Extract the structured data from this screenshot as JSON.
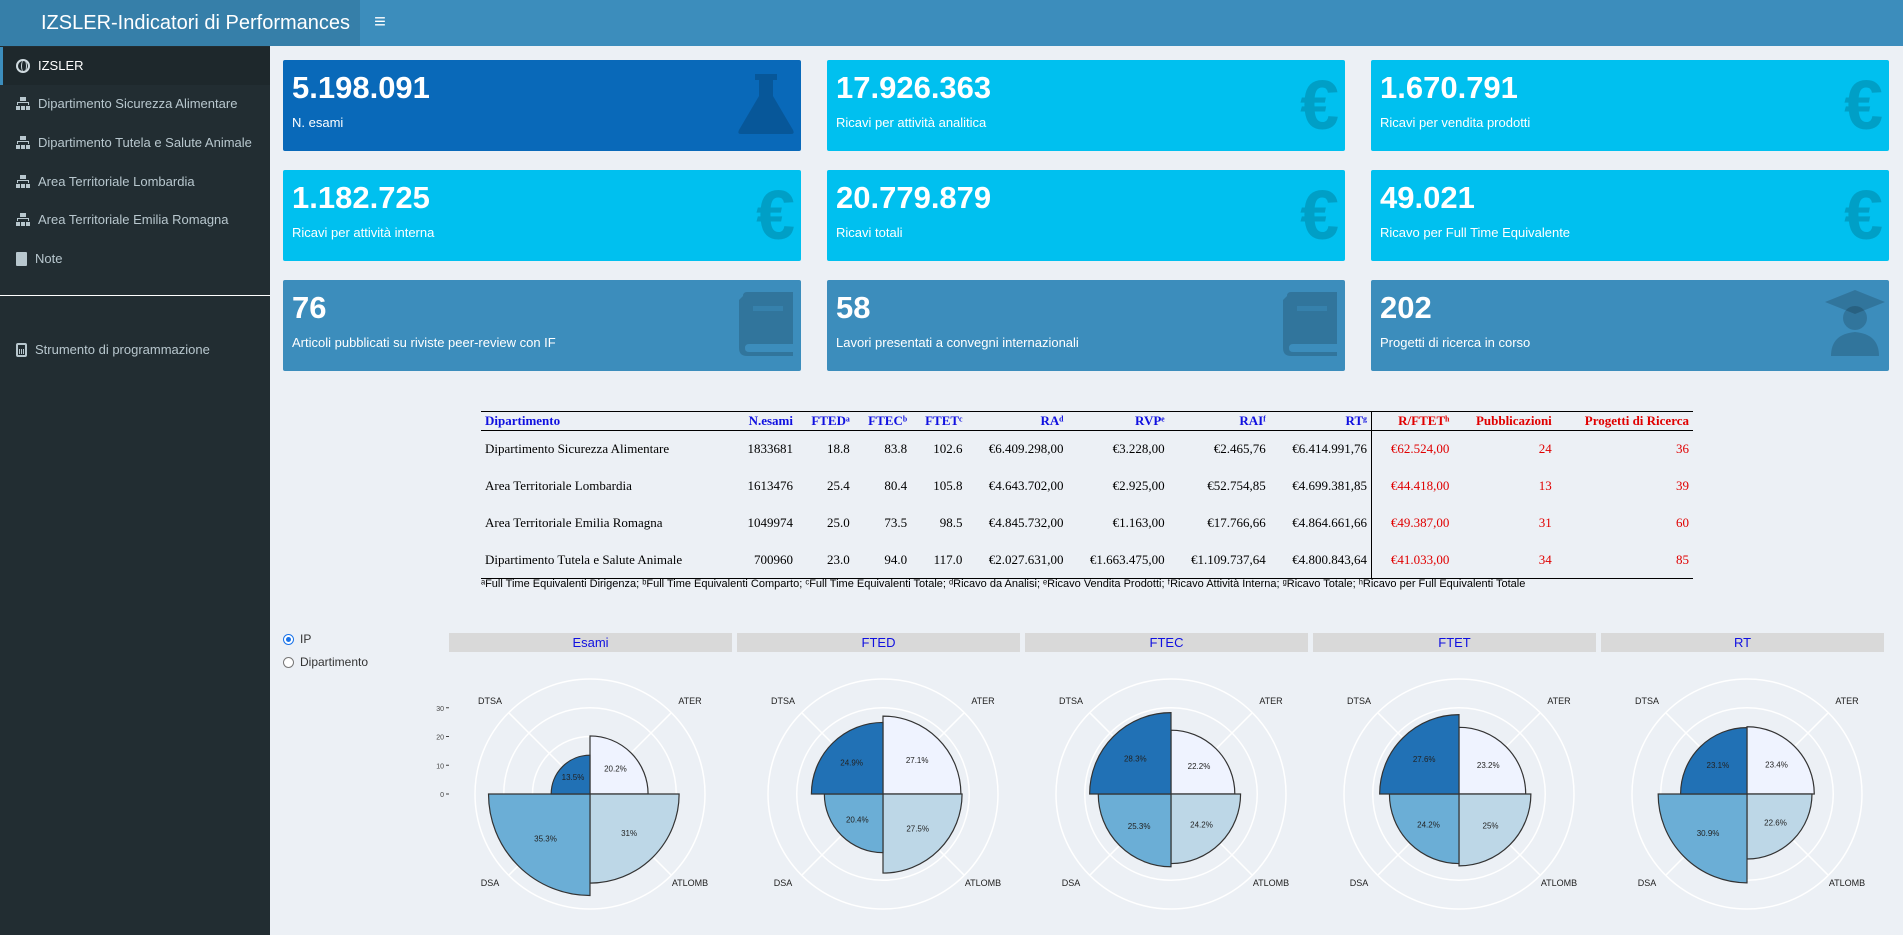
{
  "header": {
    "title": "IZSLER-Indicatori di Performances",
    "toggle": "≡"
  },
  "sidebar": {
    "items": [
      {
        "label": "IZSLER",
        "icon": "globe-icon"
      },
      {
        "label": "Dipartimento Sicurezza Alimentare",
        "icon": "sitemap-icon"
      },
      {
        "label": "Dipartimento Tutela e Salute Animale",
        "icon": "sitemap-icon"
      },
      {
        "label": "Area Territoriale Lombardia",
        "icon": "sitemap-icon"
      },
      {
        "label": "Area Territoriale Emilia Romagna",
        "icon": "sitemap-icon"
      },
      {
        "label": "Note",
        "icon": "book-icon"
      },
      {
        "label": "Strumento di programmazione",
        "icon": "calculator-icon"
      }
    ]
  },
  "boxes": [
    {
      "value": "5.198.091",
      "label": "N. esami",
      "icon": "flask-icon"
    },
    {
      "value": "17.926.363",
      "label": "Ricavi per attività analitica",
      "icon": "euro-icon"
    },
    {
      "value": "1.670.791",
      "label": "Ricavi per vendita prodotti",
      "icon": "euro-icon"
    },
    {
      "value": "1.182.725",
      "label": "Ricavi per attività interna",
      "icon": "euro-icon"
    },
    {
      "value": "20.779.879",
      "label": "Ricavi totali",
      "icon": "euro-icon"
    },
    {
      "value": "49.021",
      "label": "Ricavo per Full Time Equivalente",
      "icon": "euro-icon"
    },
    {
      "value": "76",
      "label": "Articoli pubblicati su riviste peer-review con IF",
      "icon": "book-icon"
    },
    {
      "value": "58",
      "label": "Lavori presentati a convegni internazionali",
      "icon": "book-icon"
    },
    {
      "value": "202",
      "label": "Progetti di ricerca in corso",
      "icon": "graduate-icon"
    }
  ],
  "table": {
    "headers": [
      "Dipartimento",
      "N.esami",
      "FTEDᵃ",
      "FTECᵇ",
      "FTETᶜ",
      "RAᵈ",
      "RVPᵉ",
      "RAIᶠ",
      "RTᵍ",
      "R/FTETʰ",
      "Pubblicazioni",
      "Progetti di Ricerca"
    ],
    "rows": [
      [
        "Dipartimento Sicurezza Alimentare",
        "1833681",
        "18.8",
        "83.8",
        "102.6",
        "€6.409.298,00",
        "€3.228,00",
        "€2.465,76",
        "€6.414.991,76",
        "€62.524,00",
        "24",
        "36"
      ],
      [
        "Area Territoriale Lombardia",
        "1613476",
        "25.4",
        "80.4",
        "105.8",
        "€4.643.702,00",
        "€2.925,00",
        "€52.754,85",
        "€4.699.381,85",
        "€44.418,00",
        "13",
        "39"
      ],
      [
        "Area Territoriale Emilia Romagna",
        "1049974",
        "25.0",
        "73.5",
        "98.5",
        "€4.845.732,00",
        "€1.163,00",
        "€17.766,66",
        "€4.864.661,66",
        "€49.387,00",
        "31",
        "60"
      ],
      [
        "Dipartimento Tutela e Salute Animale",
        "700960",
        "23.0",
        "94.0",
        "117.0",
        "€2.027.631,00",
        "€1.663.475,00",
        "€1.109.737,64",
        "€4.800.843,64",
        "€41.033,00",
        "34",
        "85"
      ]
    ],
    "footnote": "ᵃFull Time Equivalenti Dirigenza; ᵇFull Time Equivalenti Comparto; ᶜFull Time Equivalenti Totale; ᵈRicavo da Analisi; ᵉRicavo Vendita Prodotti; ᶠRicavo Attività Interna; ᵍRicavo Totale; ʰRicavo per Full Equivalenti Totale"
  },
  "radio": {
    "options": [
      "IP",
      "Dipartimento"
    ],
    "selected": "IP"
  },
  "chart_data": [
    {
      "type": "polar-bar",
      "title": "Esami",
      "categories": [
        "ATER",
        "ATLOMB",
        "DSA",
        "DTSA"
      ],
      "values": [
        20.2,
        31,
        35.3,
        13.5
      ],
      "labels": [
        "20.2%",
        "31%",
        "35.3%",
        "13.5%"
      ],
      "yticks": [
        0,
        10,
        20,
        30
      ],
      "colors": [
        "#eff3ff",
        "#bdd7e7",
        "#6baed6",
        "#2171b5"
      ]
    },
    {
      "type": "polar-bar",
      "title": "FTED",
      "categories": [
        "ATER",
        "ATLOMB",
        "DSA",
        "DTSA"
      ],
      "values": [
        27.1,
        27.5,
        20.4,
        24.9
      ],
      "labels": [
        "27.1%",
        "27.5%",
        "20.4%",
        "24.9%"
      ],
      "colors": [
        "#eff3ff",
        "#bdd7e7",
        "#6baed6",
        "#2171b5"
      ]
    },
    {
      "type": "polar-bar",
      "title": "FTEC",
      "categories": [
        "ATER",
        "ATLOMB",
        "DSA",
        "DTSA"
      ],
      "values": [
        22.2,
        24.2,
        25.3,
        28.3
      ],
      "labels": [
        "22.2%",
        "24.2%",
        "25.3%",
        "28.3%"
      ],
      "colors": [
        "#eff3ff",
        "#bdd7e7",
        "#6baed6",
        "#2171b5"
      ]
    },
    {
      "type": "polar-bar",
      "title": "FTET",
      "categories": [
        "ATER",
        "ATLOMB",
        "DSA",
        "DTSA"
      ],
      "values": [
        23.2,
        25,
        24.2,
        27.6
      ],
      "labels": [
        "23.2%",
        "25%",
        "24.2%",
        "27.6%"
      ],
      "colors": [
        "#eff3ff",
        "#bdd7e7",
        "#6baed6",
        "#2171b5"
      ]
    },
    {
      "type": "polar-bar",
      "title": "RT",
      "categories": [
        "ATER",
        "ATLOMB",
        "DSA",
        "DTSA"
      ],
      "values": [
        23.4,
        22.6,
        30.9,
        23.1
      ],
      "labels": [
        "23.4%",
        "22.6%",
        "30.9%",
        "23.1%"
      ],
      "colors": [
        "#eff3ff",
        "#bdd7e7",
        "#6baed6",
        "#2171b5"
      ]
    }
  ]
}
